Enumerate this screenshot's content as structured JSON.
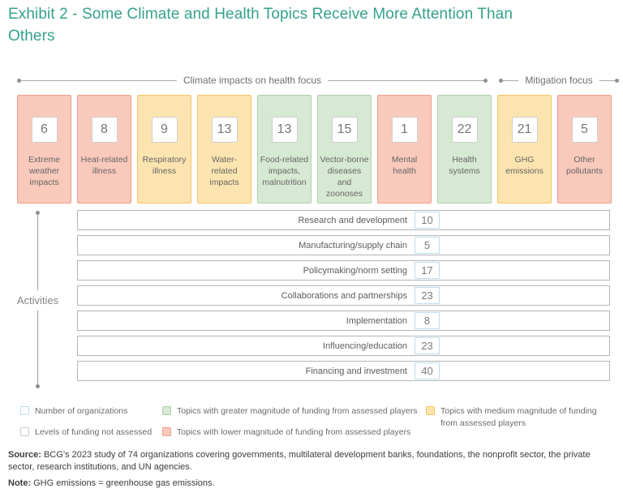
{
  "title": "Exhibit 2 - Some Climate and Health Topics Receive More Attention Than Others",
  "brackets": {
    "climate": "Climate impacts on health focus",
    "mitigation": "Mitigation focus"
  },
  "topics": [
    {
      "value": "6",
      "label": "Extreme weather impacts",
      "funding": "lower"
    },
    {
      "value": "8",
      "label": "Heat-related illness",
      "funding": "lower"
    },
    {
      "value": "9",
      "label": "Respiratory illness",
      "funding": "medium"
    },
    {
      "value": "13",
      "label": "Water-related impacts",
      "funding": "medium"
    },
    {
      "value": "13",
      "label": "Food-related impacts, malnutrition",
      "funding": "greater"
    },
    {
      "value": "15",
      "label": "Vector-borne diseases and zoonoses",
      "funding": "greater"
    },
    {
      "value": "1",
      "label": "Mental health",
      "funding": "lower"
    },
    {
      "value": "22",
      "label": "Health systems",
      "funding": "greater"
    },
    {
      "value": "21",
      "label": "GHG emissions",
      "funding": "medium"
    },
    {
      "value": "5",
      "label": "Other pollutants",
      "funding": "lower"
    }
  ],
  "activities": {
    "axis_label": "Activities",
    "rows": [
      {
        "label": "Research and development",
        "value": "10"
      },
      {
        "label": "Manufacturing/supply chain",
        "value": "5"
      },
      {
        "label": "Policymaking/norm setting",
        "value": "17"
      },
      {
        "label": "Collaborations and partnerships",
        "value": "23"
      },
      {
        "label": "Implementation",
        "value": "8"
      },
      {
        "label": "Influencing/education",
        "value": "23"
      },
      {
        "label": "Financing and investment",
        "value": "40"
      }
    ]
  },
  "legend": {
    "items": [
      {
        "label": "Number of organizations",
        "swatch": "value-box"
      },
      {
        "label": "Levels of funding not assessed",
        "swatch": "not-assessed"
      },
      {
        "label": "Topics with greater magnitude of funding from assessed players",
        "swatch": "greater"
      },
      {
        "label": "Topics with lower magnitude of funding from assessed players",
        "swatch": "lower"
      },
      {
        "label": "Topics with medium magnitude of funding from assessed players",
        "swatch": "medium"
      }
    ]
  },
  "source": {
    "label": "Source:",
    "text": "BCG’s 2023 study of 74 organizations covering governments, multilateral development banks, foundations, the nonprofit sector, the private sector, research institutions, and UN agencies."
  },
  "note": {
    "label": "Note:",
    "text": "GHG emissions = greenhouse gas emissions."
  },
  "colors": {
    "title_teal": "#35a28c",
    "lower_fill": "#f9c9bb",
    "lower_border": "#ef9e8b",
    "medium_fill": "#fce4b0",
    "medium_border": "#f2c563",
    "greater_fill": "#d6e9d2",
    "greater_border": "#abd3a6",
    "value_box_border": "#bcdded"
  },
  "chart_data": [
    {
      "type": "bar",
      "title": "Topics (number of organizations)",
      "categories": [
        "Extreme weather impacts",
        "Heat-related illness",
        "Respiratory illness",
        "Water-related impacts",
        "Food-related impacts, malnutrition",
        "Vector-borne diseases and zoonoses",
        "Mental health",
        "Health systems",
        "GHG emissions",
        "Other pollutants"
      ],
      "values": [
        6,
        8,
        9,
        13,
        13,
        15,
        1,
        22,
        21,
        5
      ],
      "funding_magnitude": [
        "lower",
        "lower",
        "medium",
        "medium",
        "greater",
        "greater",
        "lower",
        "greater",
        "medium",
        "lower"
      ],
      "groups": [
        {
          "label": "Climate impacts on health focus",
          "category_indexes": [
            0,
            1,
            2,
            3,
            4,
            5,
            6,
            7
          ]
        },
        {
          "label": "Mitigation focus",
          "category_indexes": [
            8,
            9
          ]
        }
      ],
      "xlabel": "",
      "ylabel": "Number of organizations",
      "legend_position": "bottom"
    },
    {
      "type": "bar",
      "title": "Activities (number of organizations)",
      "categories": [
        "Research and development",
        "Manufacturing/supply chain",
        "Policymaking/norm setting",
        "Collaborations and partnerships",
        "Implementation",
        "Influencing/education",
        "Financing and investment"
      ],
      "values": [
        10,
        5,
        17,
        23,
        8,
        23,
        40
      ],
      "xlabel": "Activities",
      "ylabel": "Number of organizations"
    }
  ]
}
